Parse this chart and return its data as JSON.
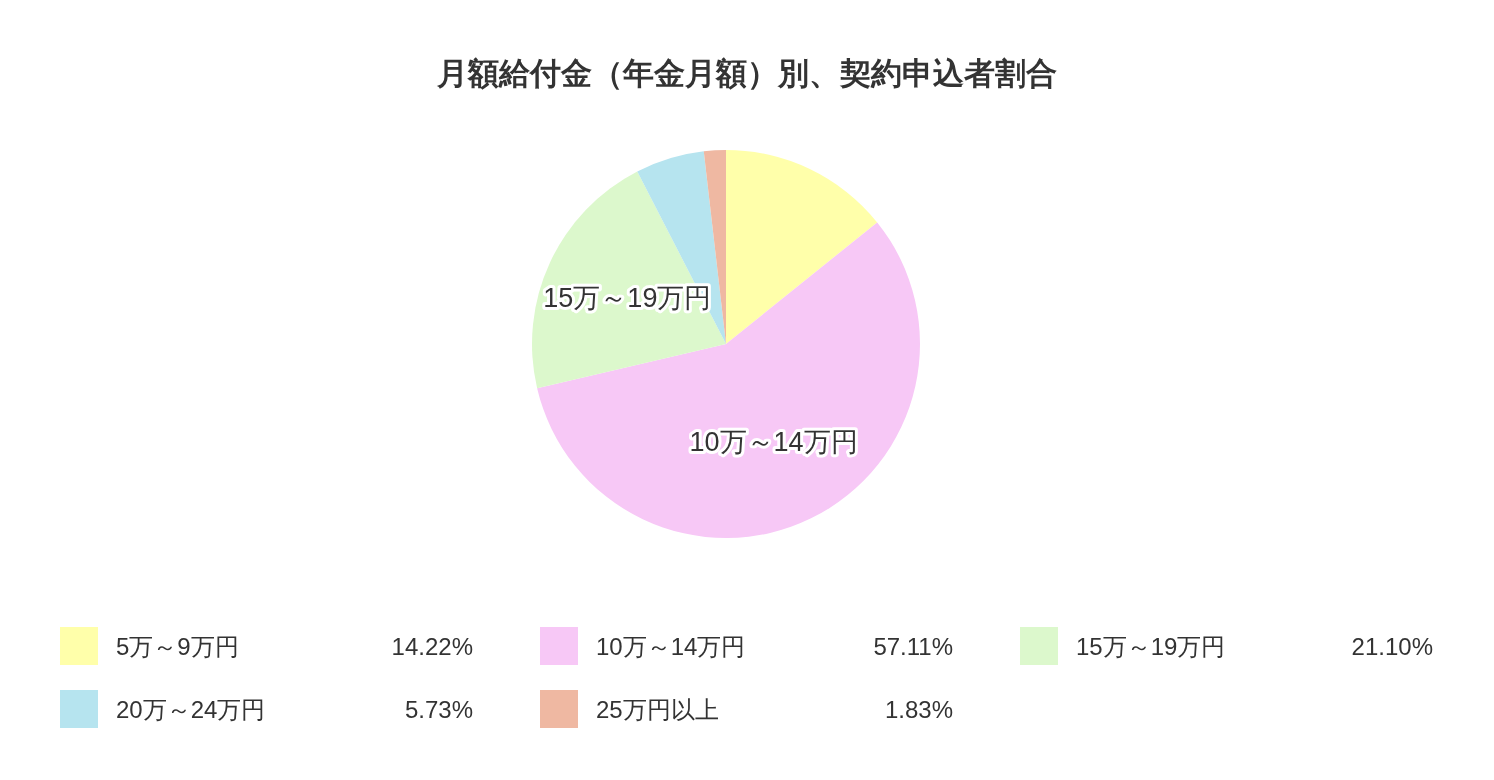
{
  "chart_data": {
    "type": "pie",
    "title": "月額給付金（年金月額）別、契約申込者割合",
    "categories": [
      "5万～9万円",
      "10万～14万円",
      "15万～19万円",
      "20万～24万円",
      "25万円以上"
    ],
    "values": [
      14.22,
      57.11,
      21.1,
      5.73,
      1.83
    ],
    "colors": [
      "#ffffaa",
      "#f7c8f6",
      "#dcf8cc",
      "#b6e4ef",
      "#efb8a2"
    ],
    "value_labels": [
      "14.22%",
      "57.11%",
      "21.10%",
      "5.73%",
      "1.83%"
    ],
    "legend": "bottom"
  }
}
